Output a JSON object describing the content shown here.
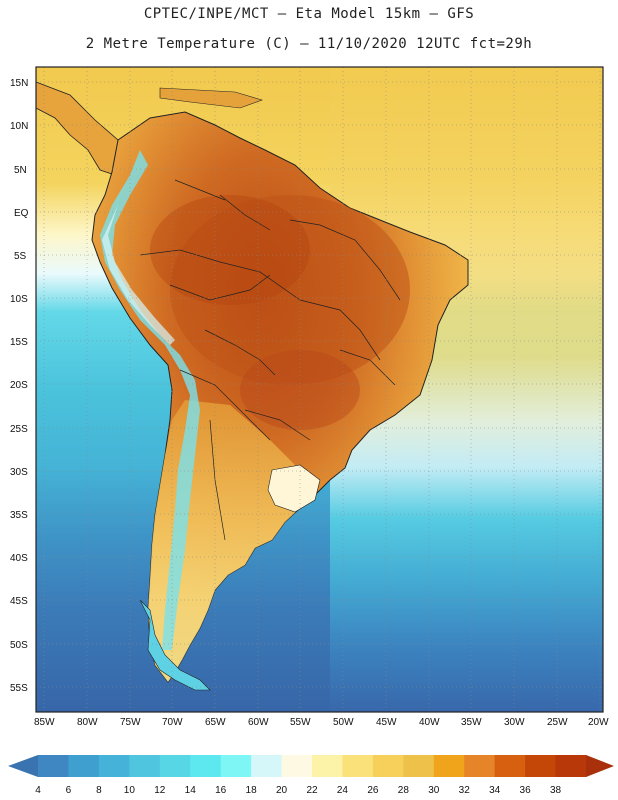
{
  "title_line1": "CPTEC/INPE/MCT –  Eta Model 15km – GFS",
  "title_line2": "2 Metre Temperature (C) – 11/10/2020 12UTC fct=29h",
  "lat_labels": [
    "15N",
    "10N",
    "5N",
    "EQ",
    "5S",
    "10S",
    "15S",
    "20S",
    "25S",
    "30S",
    "35S",
    "40S",
    "45S",
    "50S",
    "55S"
  ],
  "lon_labels": [
    "85W",
    "80W",
    "75W",
    "70W",
    "65W",
    "60W",
    "55W",
    "50W",
    "45W",
    "40W",
    "35W",
    "30W",
    "25W",
    "20W"
  ],
  "colorbar": {
    "ticks": [
      "4",
      "6",
      "8",
      "10",
      "12",
      "14",
      "16",
      "18",
      "20",
      "22",
      "24",
      "26",
      "28",
      "30",
      "32",
      "34",
      "36",
      "38"
    ],
    "colors": [
      "#3a74b0",
      "#3f87c2",
      "#3f9fcf",
      "#45b3d9",
      "#4fc5df",
      "#57d7e6",
      "#5ce8ee",
      "#7ef6f6",
      "#d6f7fa",
      "#fdf9e3",
      "#fdf3a8",
      "#fbe17a",
      "#f6d05a",
      "#eec14a",
      "#f0a41c",
      "#e58428",
      "#d75f10",
      "#c44708",
      "#b8380a",
      "#a8300a"
    ]
  },
  "colors": {
    "ocean_south": "#3a70b0",
    "ocean_mid": "#4fc3dd",
    "ocean_north": "#f4cf56",
    "land_hot": "#c65a1e",
    "land_warm": "#e9a33a",
    "andes": "#7fe3ef"
  }
}
